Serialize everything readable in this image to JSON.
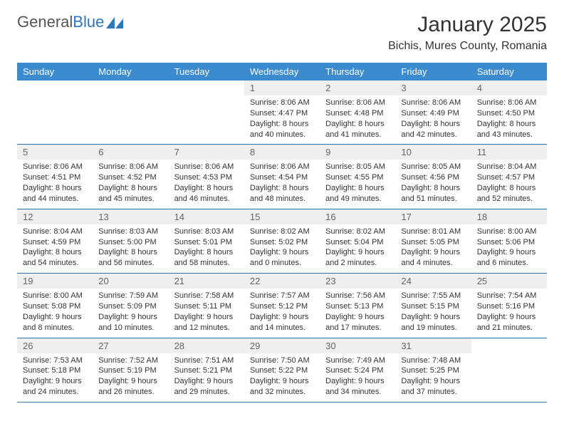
{
  "brand": {
    "name_a": "General",
    "name_b": "Blue"
  },
  "header": {
    "title": "January 2025",
    "location": "Bichis, Mures County, Romania"
  },
  "style": {
    "header_bg": "#3b8bce",
    "header_fg": "#ffffff",
    "daynum_bg": "#efefef",
    "row_border": "#2f6fa8",
    "logo_fill": "#2f76bb"
  },
  "weekdays": [
    "Sunday",
    "Monday",
    "Tuesday",
    "Wednesday",
    "Thursday",
    "Friday",
    "Saturday"
  ],
  "weeks": [
    [
      {
        "empty": true
      },
      {
        "empty": true
      },
      {
        "empty": true
      },
      {
        "num": "1",
        "sunrise": "8:06 AM",
        "sunset": "4:47 PM",
        "dl_h": "8",
        "dl_m": "40"
      },
      {
        "num": "2",
        "sunrise": "8:06 AM",
        "sunset": "4:48 PM",
        "dl_h": "8",
        "dl_m": "41"
      },
      {
        "num": "3",
        "sunrise": "8:06 AM",
        "sunset": "4:49 PM",
        "dl_h": "8",
        "dl_m": "42"
      },
      {
        "num": "4",
        "sunrise": "8:06 AM",
        "sunset": "4:50 PM",
        "dl_h": "8",
        "dl_m": "43"
      }
    ],
    [
      {
        "num": "5",
        "sunrise": "8:06 AM",
        "sunset": "4:51 PM",
        "dl_h": "8",
        "dl_m": "44"
      },
      {
        "num": "6",
        "sunrise": "8:06 AM",
        "sunset": "4:52 PM",
        "dl_h": "8",
        "dl_m": "45"
      },
      {
        "num": "7",
        "sunrise": "8:06 AM",
        "sunset": "4:53 PM",
        "dl_h": "8",
        "dl_m": "46"
      },
      {
        "num": "8",
        "sunrise": "8:06 AM",
        "sunset": "4:54 PM",
        "dl_h": "8",
        "dl_m": "48"
      },
      {
        "num": "9",
        "sunrise": "8:05 AM",
        "sunset": "4:55 PM",
        "dl_h": "8",
        "dl_m": "49"
      },
      {
        "num": "10",
        "sunrise": "8:05 AM",
        "sunset": "4:56 PM",
        "dl_h": "8",
        "dl_m": "51"
      },
      {
        "num": "11",
        "sunrise": "8:04 AM",
        "sunset": "4:57 PM",
        "dl_h": "8",
        "dl_m": "52"
      }
    ],
    [
      {
        "num": "12",
        "sunrise": "8:04 AM",
        "sunset": "4:59 PM",
        "dl_h": "8",
        "dl_m": "54"
      },
      {
        "num": "13",
        "sunrise": "8:03 AM",
        "sunset": "5:00 PM",
        "dl_h": "8",
        "dl_m": "56"
      },
      {
        "num": "14",
        "sunrise": "8:03 AM",
        "sunset": "5:01 PM",
        "dl_h": "8",
        "dl_m": "58"
      },
      {
        "num": "15",
        "sunrise": "8:02 AM",
        "sunset": "5:02 PM",
        "dl_h": "9",
        "dl_m": "0"
      },
      {
        "num": "16",
        "sunrise": "8:02 AM",
        "sunset": "5:04 PM",
        "dl_h": "9",
        "dl_m": "2"
      },
      {
        "num": "17",
        "sunrise": "8:01 AM",
        "sunset": "5:05 PM",
        "dl_h": "9",
        "dl_m": "4"
      },
      {
        "num": "18",
        "sunrise": "8:00 AM",
        "sunset": "5:06 PM",
        "dl_h": "9",
        "dl_m": "6"
      }
    ],
    [
      {
        "num": "19",
        "sunrise": "8:00 AM",
        "sunset": "5:08 PM",
        "dl_h": "9",
        "dl_m": "8"
      },
      {
        "num": "20",
        "sunrise": "7:59 AM",
        "sunset": "5:09 PM",
        "dl_h": "9",
        "dl_m": "10"
      },
      {
        "num": "21",
        "sunrise": "7:58 AM",
        "sunset": "5:11 PM",
        "dl_h": "9",
        "dl_m": "12"
      },
      {
        "num": "22",
        "sunrise": "7:57 AM",
        "sunset": "5:12 PM",
        "dl_h": "9",
        "dl_m": "14"
      },
      {
        "num": "23",
        "sunrise": "7:56 AM",
        "sunset": "5:13 PM",
        "dl_h": "9",
        "dl_m": "17"
      },
      {
        "num": "24",
        "sunrise": "7:55 AM",
        "sunset": "5:15 PM",
        "dl_h": "9",
        "dl_m": "19"
      },
      {
        "num": "25",
        "sunrise": "7:54 AM",
        "sunset": "5:16 PM",
        "dl_h": "9",
        "dl_m": "21"
      }
    ],
    [
      {
        "num": "26",
        "sunrise": "7:53 AM",
        "sunset": "5:18 PM",
        "dl_h": "9",
        "dl_m": "24"
      },
      {
        "num": "27",
        "sunrise": "7:52 AM",
        "sunset": "5:19 PM",
        "dl_h": "9",
        "dl_m": "26"
      },
      {
        "num": "28",
        "sunrise": "7:51 AM",
        "sunset": "5:21 PM",
        "dl_h": "9",
        "dl_m": "29"
      },
      {
        "num": "29",
        "sunrise": "7:50 AM",
        "sunset": "5:22 PM",
        "dl_h": "9",
        "dl_m": "32"
      },
      {
        "num": "30",
        "sunrise": "7:49 AM",
        "sunset": "5:24 PM",
        "dl_h": "9",
        "dl_m": "34"
      },
      {
        "num": "31",
        "sunrise": "7:48 AM",
        "sunset": "5:25 PM",
        "dl_h": "9",
        "dl_m": "37"
      },
      {
        "empty": true
      }
    ]
  ]
}
